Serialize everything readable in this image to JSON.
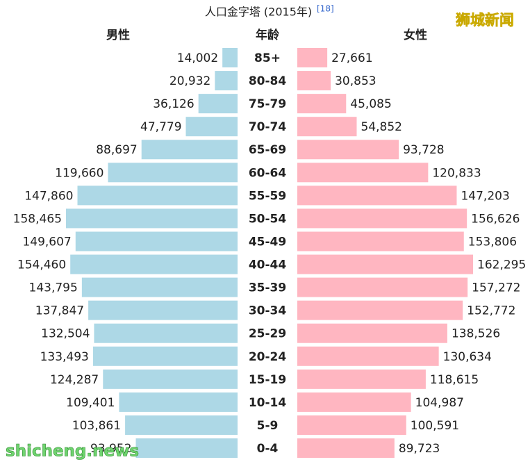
{
  "chart_data": {
    "type": "pyramid",
    "title": "人口金字塔 (2015年)",
    "title_ref": "[18]",
    "category_label": "年龄",
    "categories": [
      "85+",
      "80-84",
      "75-79",
      "70-74",
      "65-69",
      "60-64",
      "55-59",
      "50-54",
      "45-49",
      "40-44",
      "35-39",
      "30-34",
      "25-29",
      "20-24",
      "15-19",
      "10-14",
      "5-9",
      "0-4"
    ],
    "series": [
      {
        "name": "男性",
        "color": "#add8e6",
        "values": [
          14002,
          20932,
          36126,
          47779,
          88697,
          119660,
          147860,
          158465,
          149607,
          154460,
          143795,
          137847,
          132504,
          133493,
          124287,
          109401,
          103861,
          93952
        ],
        "value_labels": [
          "14,002",
          "20,932",
          "36,126",
          "47,779",
          "88,697",
          "119,660",
          "147,860",
          "158,465",
          "149,607",
          "154,460",
          "143,795",
          "137,847",
          "132,504",
          "133,493",
          "124,287",
          "109,401",
          "103,861",
          "93,952"
        ]
      },
      {
        "name": "女性",
        "color": "#ffb6c1",
        "values": [
          27661,
          30853,
          45085,
          54852,
          93728,
          120833,
          147203,
          156626,
          153806,
          162295,
          157272,
          152772,
          138526,
          130634,
          118615,
          104987,
          100591,
          89723
        ],
        "value_labels": [
          "27,661",
          "30,853",
          "45,085",
          "54,852",
          "93,728",
          "120,833",
          "147,203",
          "156,626",
          "153,806",
          "162,295",
          "157,272",
          "152,772",
          "138,526",
          "130,634",
          "118,615",
          "104,987",
          "100,591",
          "89,723"
        ]
      }
    ]
  },
  "watermarks": [
    "狮城新闻",
    "shicheng.news"
  ]
}
